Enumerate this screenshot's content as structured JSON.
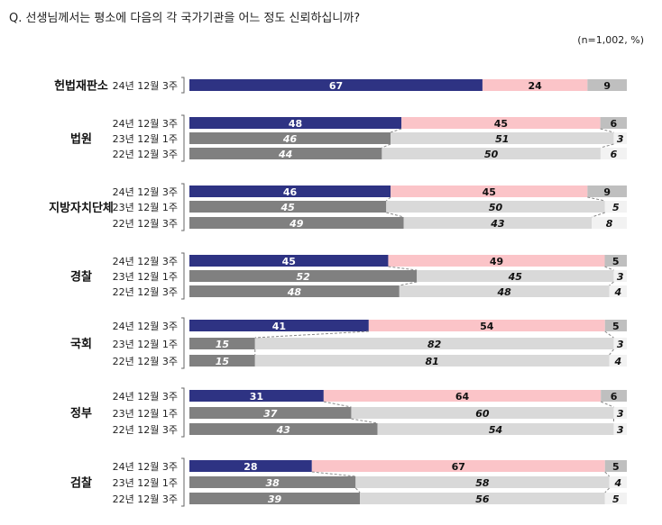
{
  "question": "Q. 선생님께서는 평소에 다음의 각 국가기관을 어느 정도 신뢰하십니까?",
  "note": "(n=1,002, %)",
  "chart_data": {
    "type": "bar",
    "stacked": true,
    "orientation": "horizontal",
    "xlim": [
      0,
      100
    ],
    "colors_current": [
      "#2e3383",
      "#fbc4c8",
      "#bfbfbf"
    ],
    "colors_past": [
      "#808080",
      "#d9d9d9",
      "#f2f2f2"
    ],
    "groups": [
      {
        "name": "헌법재판소",
        "rows": [
          {
            "period": "24년 12월 3주",
            "values": [
              67,
              24,
              9
            ]
          }
        ]
      },
      {
        "name": "법원",
        "rows": [
          {
            "period": "24년 12월 3주",
            "values": [
              48,
              45,
              6
            ]
          },
          {
            "period": "23년 12월 1주",
            "values": [
              46,
              51,
              3
            ]
          },
          {
            "period": "22년 12월 3주",
            "values": [
              44,
              50,
              6
            ]
          }
        ]
      },
      {
        "name": "지방자치단체",
        "rows": [
          {
            "period": "24년 12월 3주",
            "values": [
              46,
              45,
              9
            ]
          },
          {
            "period": "23년 12월 1주",
            "values": [
              45,
              50,
              5
            ]
          },
          {
            "period": "22년 12월 3주",
            "values": [
              49,
              43,
              8
            ]
          }
        ]
      },
      {
        "name": "경찰",
        "rows": [
          {
            "period": "24년 12월 3주",
            "values": [
              45,
              49,
              5
            ]
          },
          {
            "period": "23년 12월 1주",
            "values": [
              52,
              45,
              3
            ]
          },
          {
            "period": "22년 12월 3주",
            "values": [
              48,
              48,
              4
            ]
          }
        ]
      },
      {
        "name": "국회",
        "rows": [
          {
            "period": "24년 12월 3주",
            "values": [
              41,
              54,
              5
            ]
          },
          {
            "period": "23년 12월 1주",
            "values": [
              15,
              82,
              3
            ]
          },
          {
            "period": "22년 12월 3주",
            "values": [
              15,
              81,
              4
            ]
          }
        ]
      },
      {
        "name": "정부",
        "rows": [
          {
            "period": "24년 12월 3주",
            "values": [
              31,
              64,
              6
            ]
          },
          {
            "period": "23년 12월 1주",
            "values": [
              37,
              60,
              3
            ]
          },
          {
            "period": "22년 12월 3주",
            "values": [
              43,
              54,
              3
            ]
          }
        ]
      },
      {
        "name": "검찰",
        "rows": [
          {
            "period": "24년 12월 3주",
            "values": [
              28,
              67,
              5
            ]
          },
          {
            "period": "23년 12월 1주",
            "values": [
              38,
              58,
              4
            ]
          },
          {
            "period": "22년 12월 3주",
            "values": [
              39,
              56,
              5
            ]
          }
        ]
      }
    ]
  }
}
